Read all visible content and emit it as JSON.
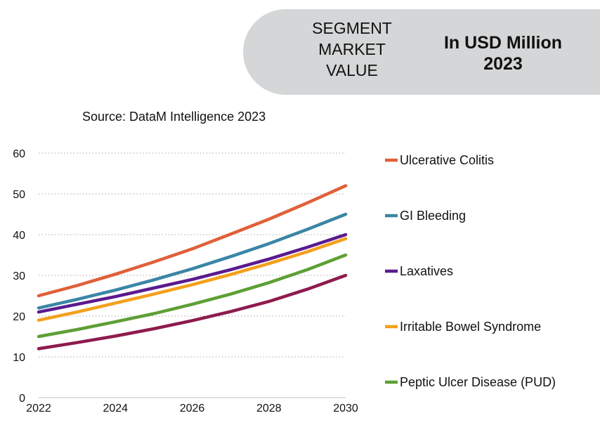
{
  "banner": {
    "left_lines": [
      "SEGMENT",
      "MARKET",
      "VALUE"
    ],
    "right_lines": [
      "In USD Million",
      "2023"
    ]
  },
  "source": "Source: DataM Intelligence 2023",
  "chart_data": {
    "type": "line",
    "title": "",
    "xlabel": "",
    "ylabel": "",
    "x": [
      2022,
      2023,
      2024,
      2025,
      2026,
      2027,
      2028,
      2029,
      2030
    ],
    "xticks": [
      2022,
      2024,
      2026,
      2028,
      2030
    ],
    "yticks": [
      0,
      10,
      20,
      30,
      40,
      50,
      60
    ],
    "xlim": [
      2022,
      2030
    ],
    "ylim": [
      0,
      60
    ],
    "grid": "horizontal-dotted",
    "legend_position": "right",
    "series": [
      {
        "name": "Ulcerative Colitis",
        "color": "#e0603a",
        "values": [
          25,
          27.5,
          30.3,
          33.3,
          36.5,
          40.1,
          43.8,
          47.8,
          52
        ]
      },
      {
        "name": "GI Bleeding",
        "color": "#3a86a6",
        "values": [
          22,
          24.1,
          26.4,
          28.9,
          31.6,
          34.6,
          37.8,
          41.3,
          45
        ]
      },
      {
        "name": "Laxatives",
        "color": "#5b1a8e",
        "values": [
          21,
          22.9,
          24.8,
          26.9,
          29.0,
          31.4,
          34.0,
          36.9,
          40
        ]
      },
      {
        "name": "Irritable Bowel Syndrome",
        "color": "#f4a01c",
        "values": [
          19,
          21.0,
          23.2,
          25.4,
          27.7,
          30.2,
          32.9,
          35.8,
          39
        ]
      },
      {
        "name": "Peptic Ulcer Disease (PUD)",
        "color": "#5e9f35",
        "values": [
          15,
          16.7,
          18.6,
          20.6,
          22.9,
          25.4,
          28.2,
          31.4,
          35
        ]
      },
      {
        "name": "",
        "color": "#8e1b4e",
        "values": [
          12,
          13.5,
          15.1,
          16.9,
          18.9,
          21.1,
          23.6,
          26.6,
          30
        ]
      }
    ]
  }
}
